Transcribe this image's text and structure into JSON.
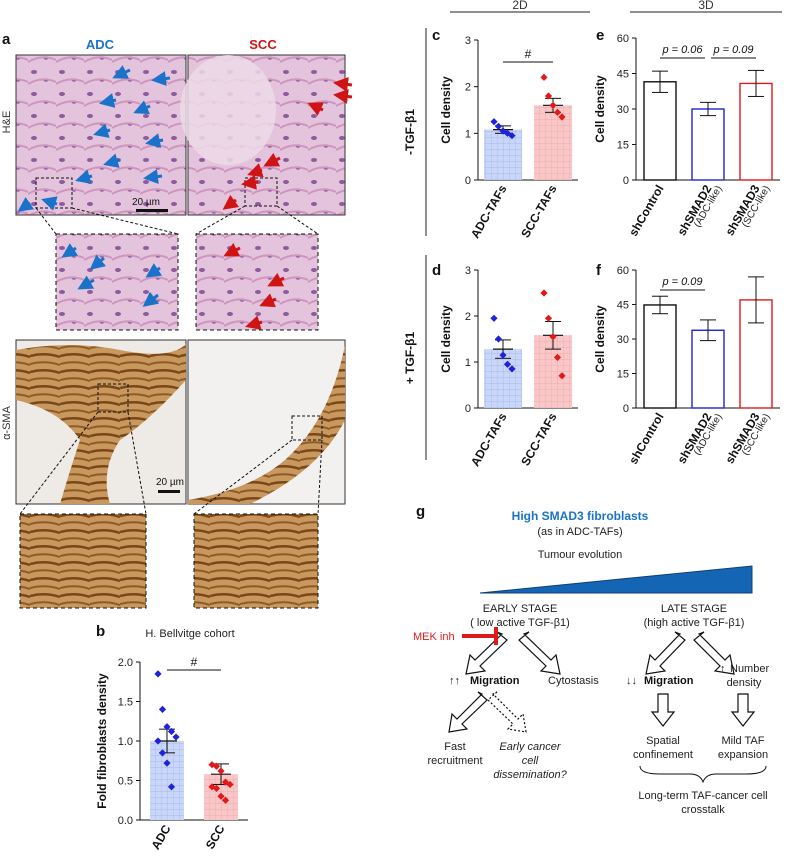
{
  "panel_letters": {
    "a": "a",
    "b": "b",
    "c": "c",
    "d": "d",
    "e": "e",
    "f": "f",
    "g": "g"
  },
  "colors": {
    "adc_blue": "#1a73c9",
    "scc_red": "#d01414",
    "he_pink": "#d9a7c9",
    "sma_brown": "#b07434",
    "adc_fill": "#c9d6f7",
    "scc_fill": "#f9c7c7",
    "pt_blue": "#1e22d8",
    "pt_red": "#e01a1a"
  },
  "panel_a": {
    "col_adc": "ADC",
    "col_scc": "SCC",
    "row_he": "H&E",
    "row_sma": "α-SMA",
    "scalebar_he": "20 µm",
    "scalebar_sma": "20 µm"
  },
  "header": {
    "left": "2D",
    "right": "3D"
  },
  "side_labels": {
    "minus": "-TGF-β1",
    "plus": "+ TGF-β1"
  },
  "chart_data": [
    {
      "id": "b",
      "type": "bar",
      "title": "H. Bellvitge cohort",
      "ylabel": "Fold fibroblasts density",
      "categories": [
        "ADC",
        "SCC"
      ],
      "values": [
        1.0,
        0.58
      ],
      "sem": [
        0.15,
        0.13
      ],
      "ylim": [
        0,
        2.0
      ],
      "yticks": [
        "0.0",
        "0.5",
        "1.0",
        "1.5",
        "2.0"
      ],
      "points": [
        [
          1.85,
          1.4,
          1.18,
          1.12,
          1.05,
          1.0,
          0.85,
          0.72,
          0.42
        ],
        [
          0.7,
          0.68,
          0.62,
          0.48,
          0.45,
          0.42,
          0.4,
          0.3,
          0.25
        ]
      ],
      "significance": "#"
    },
    {
      "id": "c",
      "type": "bar",
      "ylabel": "Cell density",
      "categories": [
        "ADC-TAFs",
        "SCC-TAFs"
      ],
      "values": [
        1.08,
        1.6
      ],
      "sem": [
        0.08,
        0.15
      ],
      "ylim": [
        0,
        3
      ],
      "yticks": [
        "0",
        "1",
        "2",
        "3"
      ],
      "points": [
        [
          1.25,
          1.15,
          1.05,
          1.0,
          0.95
        ],
        [
          2.2,
          1.8,
          1.6,
          1.45,
          1.35
        ]
      ],
      "significance": "#"
    },
    {
      "id": "d",
      "type": "bar",
      "ylabel": "Cell density",
      "categories": [
        "ADC-TAFs",
        "SCC-TAFs"
      ],
      "values": [
        1.28,
        1.58
      ],
      "sem": [
        0.2,
        0.3
      ],
      "ylim": [
        0,
        3
      ],
      "yticks": [
        "0",
        "1",
        "2",
        "3"
      ],
      "points": [
        [
          1.95,
          1.5,
          1.15,
          0.95,
          0.85
        ],
        [
          2.5,
          1.95,
          1.55,
          1.1,
          0.7
        ]
      ]
    },
    {
      "id": "e",
      "type": "bar",
      "ylabel": "Cell density",
      "categories": [
        "shControl",
        "shSMAD2",
        "shSMAD3"
      ],
      "subcategories": [
        "",
        "(ADC-like)",
        "(SCC-like)"
      ],
      "values": [
        41.5,
        30.0,
        40.8
      ],
      "sem": [
        4.5,
        2.8,
        5.5
      ],
      "ylim": [
        0,
        60
      ],
      "yticks": [
        "0",
        "15",
        "30",
        "45",
        "60"
      ],
      "annotations": [
        {
          "from": 0,
          "to": 1,
          "text": "p = 0.06"
        },
        {
          "from": 1,
          "to": 2,
          "text": "p = 0.09"
        }
      ]
    },
    {
      "id": "f",
      "type": "bar",
      "ylabel": "Cell density",
      "categories": [
        "shControl",
        "shSMAD2",
        "shSMAD3"
      ],
      "subcategories": [
        "",
        "(ADC-like)",
        "(SCC-like)"
      ],
      "values": [
        44.8,
        33.8,
        47.0
      ],
      "sem": [
        3.8,
        4.5,
        10.0
      ],
      "ylim": [
        0,
        60
      ],
      "yticks": [
        "0",
        "15",
        "30",
        "45",
        "60"
      ],
      "annotations": [
        {
          "from": 0,
          "to": 1,
          "text": "p = 0.09"
        }
      ]
    }
  ],
  "panel_g": {
    "title": "High SMAD3 fibroblasts",
    "subtitle": "(as in ADC-TAFs)",
    "evolution": "Tumour evolution",
    "early_stage": "EARLY STAGE",
    "early_sub": "( low active TGF-β1)",
    "late_stage": "LATE STAGE",
    "late_sub": "(high active TGF-β1)",
    "mek": "MEK inh",
    "migration_up_symbol": "↑↑",
    "migration_up": "Migration",
    "cytostasis": "Cytostasis",
    "migration_down_symbol": "↓↓",
    "migration_down": "Migration",
    "number_up_symbol": "↑",
    "number_line1": "Number",
    "number_line2": "density",
    "fast_line1": "Fast",
    "fast_line2": "recruitment",
    "early_cancer_line1": "Early cancer",
    "early_cancer_line2": "cell",
    "early_cancer_line3": "dissemination?",
    "spatial_line1": "Spatial",
    "spatial_line2": "confinement",
    "mild_line1": "Mild TAF",
    "mild_line2": "expansion",
    "long_line1": "Long-term TAF-cancer cell",
    "long_line2": "crosstalk"
  }
}
